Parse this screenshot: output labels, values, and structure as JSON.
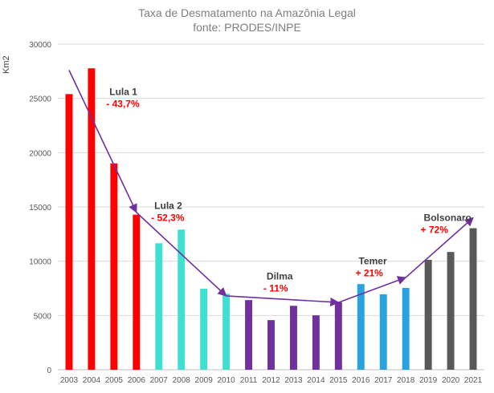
{
  "chart_data": {
    "type": "bar",
    "title": "Taxa de Desmatamento na Amazônia Legal",
    "subtitle": "fonte: PRODES/INPE",
    "xlabel": "",
    "ylabel": "Km2",
    "ylim": [
      0,
      30000
    ],
    "yticks": [
      0,
      5000,
      10000,
      15000,
      20000,
      25000,
      30000
    ],
    "grid": true,
    "categories": [
      "2003",
      "2004",
      "2005",
      "2006",
      "2007",
      "2008",
      "2009",
      "2010",
      "2011",
      "2012",
      "2013",
      "2014",
      "2015",
      "2016",
      "2017",
      "2018",
      "2019",
      "2020",
      "2021"
    ],
    "values": [
      25396,
      27772,
      19014,
      14286,
      11651,
      12911,
      7464,
      7000,
      6418,
      4571,
      5891,
      5012,
      6207,
      7893,
      6947,
      7536,
      10129,
      10851,
      13038
    ],
    "bar_colors": [
      "#ff0000",
      "#ff0000",
      "#ff0000",
      "#ff0000",
      "#40e0d0",
      "#40e0d0",
      "#40e0d0",
      "#40e0d0",
      "#7030a0",
      "#7030a0",
      "#7030a0",
      "#7030a0",
      "#7030a0",
      "#29a3e0",
      "#29a3e0",
      "#29a3e0",
      "#595959",
      "#595959",
      "#595959"
    ],
    "arrow_color": "#7030a0",
    "trend_arrows": [
      {
        "from": [
          2003,
          27600
        ],
        "to": [
          2006,
          14500
        ]
      },
      {
        "from": [
          2006,
          14500
        ],
        "to": [
          2010,
          6800
        ]
      },
      {
        "from": [
          2010,
          6800
        ],
        "to": [
          2015,
          6200
        ]
      },
      {
        "from": [
          2015,
          6200
        ],
        "to": [
          2018,
          8500
        ]
      },
      {
        "from": [
          2018,
          8500
        ],
        "to": [
          2021,
          14000
        ]
      }
    ],
    "annotations": [
      {
        "name": "Lula 1",
        "change": "- 43,7%",
        "at": [
          2004.8,
          25300
        ]
      },
      {
        "name": "Lula 2",
        "change": "- 52,3%",
        "at": [
          2006.8,
          14800
        ]
      },
      {
        "name": "Dilma",
        "change": "- 11%",
        "at": [
          2011.8,
          8300
        ]
      },
      {
        "name": "Temer",
        "change": "+ 21%",
        "at": [
          2015.9,
          9700
        ]
      },
      {
        "name": "Bolsonaro",
        "change": "+ 72%",
        "at": [
          2018.8,
          13700
        ]
      }
    ],
    "name_color": "#404040",
    "change_color": "#ff0000"
  }
}
